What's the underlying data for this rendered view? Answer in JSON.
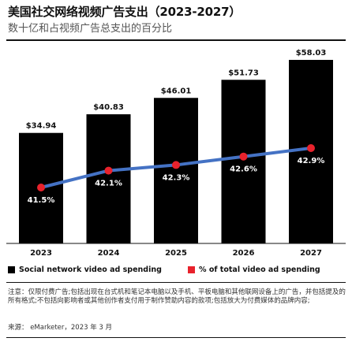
{
  "header": {
    "title": "美国社交网络视频广告支出（2023-2027）",
    "subtitle": "数十亿和占视频广告总支出的百分比"
  },
  "legend": {
    "bar_label": "Social network video ad spending",
    "line_label": "% of total video ad spending"
  },
  "footer": {
    "notes": "注意：仅限付费广告;包括出现在台式机和笔记本电脑以及手机、平板电脑和其他联网设备上的广告，并包括提及的所有格式;不包括向影响者或其他创作者支付用于制作赞助内容的款项;包括放大为付费媒体的品牌内容;",
    "source": "来源：  eMarketer，2023 年 3 月"
  },
  "colors": {
    "bar": "#000000",
    "line": "#4472c4",
    "marker": "#e8222c"
  },
  "chart_data": {
    "type": "bar",
    "categories": [
      "2023",
      "2024",
      "2025",
      "2026",
      "2027"
    ],
    "series": [
      {
        "name": "Social network video ad spending",
        "values": [
          34.94,
          40.83,
          46.01,
          51.73,
          58.03
        ],
        "labels": [
          "$34.94",
          "$40.83",
          "$46.01",
          "$51.73",
          "$58.03"
        ]
      },
      {
        "name": "% of total video ad spending",
        "type": "line",
        "values": [
          41.5,
          42.1,
          42.3,
          42.6,
          42.9
        ],
        "labels": [
          "41.5%",
          "42.1%",
          "42.3%",
          "42.6%",
          "42.9%"
        ]
      }
    ],
    "title": "美国社交网络视频广告支出（2023-2027）",
    "legend_position": "bottom",
    "grid": false
  }
}
